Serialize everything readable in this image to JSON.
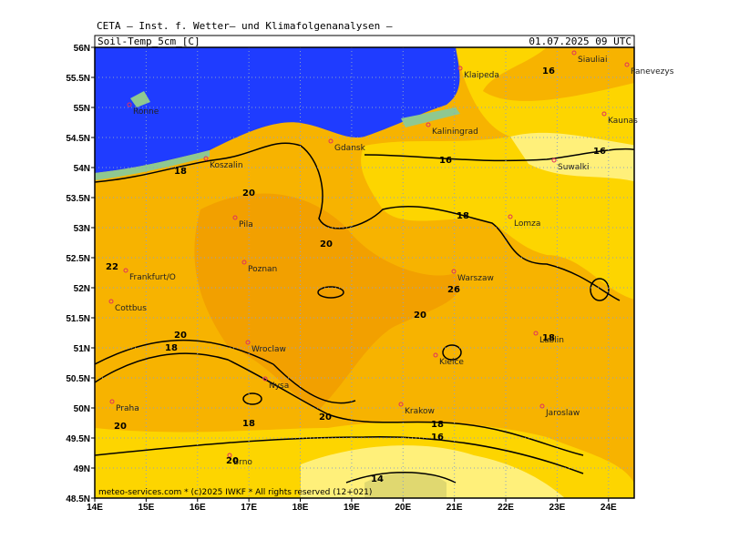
{
  "header": "CETA – Inst. f. Wetter– und Klimafolgenanalysen –",
  "title": "Soil-Temp_5cm_[C]",
  "datetime": "01.07.2025 09 UTC",
  "footer": "meteo-services.com * (c)2025 IWKF * All rights reserved (12+021)",
  "lat_ticks": [
    {
      "value": 56,
      "label": "56N"
    },
    {
      "value": 55.5,
      "label": "55.5N"
    },
    {
      "value": 55,
      "label": "55N"
    },
    {
      "value": 54.5,
      "label": "54.5N"
    },
    {
      "value": 54,
      "label": "54N"
    },
    {
      "value": 53.5,
      "label": "53.5N"
    },
    {
      "value": 53,
      "label": "53N"
    },
    {
      "value": 52.5,
      "label": "52.5N"
    },
    {
      "value": 52,
      "label": "52N"
    },
    {
      "value": 51.5,
      "label": "51.5N"
    },
    {
      "value": 51,
      "label": "51N"
    },
    {
      "value": 50.5,
      "label": "50.5N"
    },
    {
      "value": 50,
      "label": "50N"
    },
    {
      "value": 49.5,
      "label": "49.5N"
    },
    {
      "value": 49,
      "label": "49N"
    },
    {
      "value": 48.5,
      "label": "48.5N"
    }
  ],
  "lon_ticks": [
    {
      "value": 14,
      "label": "14E"
    },
    {
      "value": 15,
      "label": "15E"
    },
    {
      "value": 16,
      "label": "16E"
    },
    {
      "value": 17,
      "label": "17E"
    },
    {
      "value": 18,
      "label": "18E"
    },
    {
      "value": 19,
      "label": "19E"
    },
    {
      "value": 20,
      "label": "20E"
    },
    {
      "value": 21,
      "label": "21E"
    },
    {
      "value": 22,
      "label": "22E"
    },
    {
      "value": 23,
      "label": "23E"
    },
    {
      "value": 24,
      "label": "24E"
    }
  ],
  "cities": [
    "Klaipeda",
    "Siauliai",
    "Panevezys",
    "Ronne",
    "Kaunas",
    "Kaliningrad",
    "Gdansk",
    "Koszalin",
    "Suwalki",
    "Pila",
    "Lomza",
    "Poznan",
    "Frankfurt/O",
    "Warszaw",
    "Cottbus",
    "Wroclaw",
    "Lublin",
    "Kielce",
    "Nysa",
    "Praha",
    "Krakow",
    "Jaroslaw",
    "Brno"
  ],
  "contour_labels": [
    "16",
    "16",
    "16",
    "18",
    "20",
    "18",
    "20",
    "22",
    "26",
    "20",
    "18",
    "20",
    "18",
    "20",
    "18",
    "20",
    "18",
    "16",
    "20",
    "14"
  ]
}
